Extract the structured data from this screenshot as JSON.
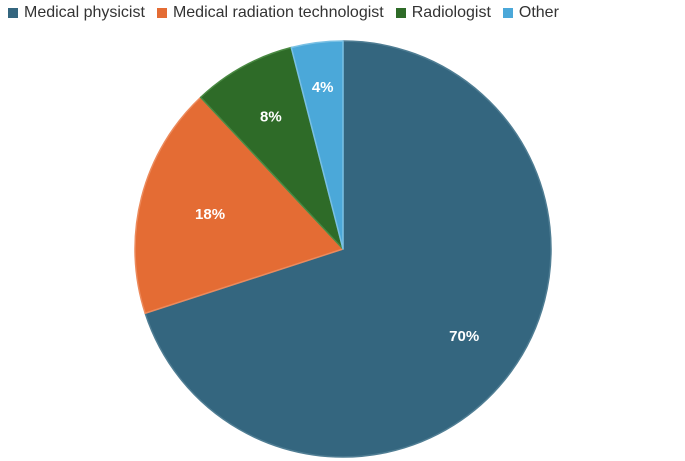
{
  "chart_data": {
    "type": "pie",
    "title": "",
    "legend_position": "top-left",
    "slices": [
      {
        "name": "Medical physicist",
        "value": 70,
        "label": "70%",
        "color": "#34667f",
        "stroke": "#4f7d93"
      },
      {
        "name": "Medical radiation technologist",
        "value": 18,
        "label": "18%",
        "color": "#e46c34",
        "stroke": "#ec8a5c"
      },
      {
        "name": "Radiologist",
        "value": 8,
        "label": "8%",
        "color": "#2e6b28",
        "stroke": "#4a8a43"
      },
      {
        "name": "Other",
        "value": 4,
        "label": "4%",
        "color": "#4ba8d9",
        "stroke": "#79c0e4"
      }
    ]
  }
}
